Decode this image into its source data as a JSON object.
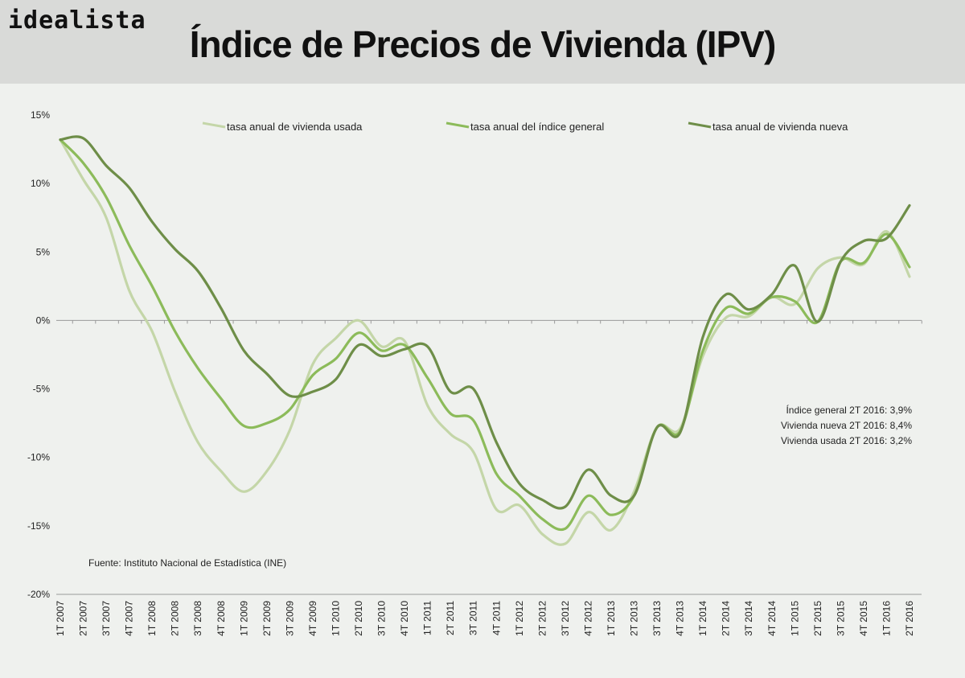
{
  "brand": {
    "logo": "idealista"
  },
  "header": {
    "title": "Índice de Precios de Vivienda (IPV)"
  },
  "colors": {
    "usada": "#c4d6a8",
    "general": "#8cbb5a",
    "nueva": "#6e8e48",
    "background": "#eff1ee",
    "header": "#d9dad8"
  },
  "annotations": {
    "source": "Fuente: Instituto Nacional de Estadística (INE)",
    "notes": [
      "Índice general 2T 2016: 3,9%",
      "Vivienda nueva 2T 2016: 8,4%",
      "Vivienda usada 2T 2016: 3,2%"
    ]
  },
  "chart_data": {
    "type": "line",
    "legend_position": "top",
    "grid": false,
    "ylim": [
      -20,
      15
    ],
    "y_ticks": [
      {
        "value": 15,
        "label": "15%"
      },
      {
        "value": 10,
        "label": "10%"
      },
      {
        "value": 5,
        "label": "5%"
      },
      {
        "value": 0,
        "label": "0%"
      },
      {
        "value": -5,
        "label": "-5%"
      },
      {
        "value": -10,
        "label": "-10%"
      },
      {
        "value": -15,
        "label": "-15%"
      },
      {
        "value": -20,
        "label": "-20%"
      }
    ],
    "categories": [
      "1T 2007",
      "2T 2007",
      "3T 2007",
      "4T 2007",
      "1T 2008",
      "2T 2008",
      "3T 2008",
      "4T 2008",
      "1T 2009",
      "2T 2009",
      "3T 2009",
      "4T 2009",
      "1T 2010",
      "2T 2010",
      "3T 2010",
      "4T 2010",
      "1T 2011",
      "2T 2011",
      "3T 2011",
      "4T 2011",
      "1T 2012",
      "2T 2012",
      "3T 2012",
      "4T 2012",
      "1T 2013",
      "2T 2013",
      "3T 2013",
      "4T 2013",
      "1T 2014",
      "2T 2014",
      "3T 2014",
      "4T 2014",
      "1T 2015",
      "2T 2015",
      "3T 2015",
      "4T 2015",
      "1T 2016",
      "2T 2016"
    ],
    "series": [
      {
        "key": "usada",
        "name": "tasa anual de vivienda usada",
        "values": [
          13.2,
          10.3,
          7.5,
          2.2,
          -0.8,
          -5.2,
          -8.9,
          -11.0,
          -12.5,
          -11.0,
          -8.0,
          -3.2,
          -1.3,
          0.0,
          -1.9,
          -1.5,
          -6.2,
          -8.3,
          -9.6,
          -13.8,
          -13.5,
          -15.6,
          -16.3,
          -14.0,
          -15.3,
          -12.5,
          -7.8,
          -7.9,
          -2.6,
          0.2,
          0.3,
          1.7,
          1.2,
          3.8,
          4.6,
          4.1,
          6.5,
          3.2
        ]
      },
      {
        "key": "general",
        "name": "tasa anual del índice general",
        "values": [
          13.2,
          11.5,
          9.0,
          5.5,
          2.5,
          -0.8,
          -3.5,
          -5.7,
          -7.7,
          -7.5,
          -6.5,
          -4.0,
          -2.8,
          -0.9,
          -2.2,
          -1.8,
          -4.2,
          -6.8,
          -7.3,
          -11.2,
          -12.8,
          -14.5,
          -15.2,
          -12.8,
          -14.2,
          -12.8,
          -7.8,
          -8.1,
          -2.2,
          0.9,
          0.5,
          1.7,
          1.4,
          -0.1,
          4.3,
          4.2,
          6.3,
          3.9
        ]
      },
      {
        "key": "nueva",
        "name": "tasa anual de vivienda nueva",
        "values": [
          13.2,
          13.3,
          11.3,
          9.7,
          7.2,
          5.2,
          3.6,
          0.9,
          -2.2,
          -3.9,
          -5.5,
          -5.2,
          -4.3,
          -1.8,
          -2.6,
          -2.1,
          -1.9,
          -5.2,
          -5.0,
          -8.9,
          -11.9,
          -13.1,
          -13.6,
          -10.9,
          -12.8,
          -12.8,
          -7.8,
          -8.2,
          -1.2,
          1.9,
          0.8,
          1.9,
          4.0,
          -0.1,
          4.3,
          5.8,
          6.0,
          8.4
        ]
      }
    ]
  }
}
